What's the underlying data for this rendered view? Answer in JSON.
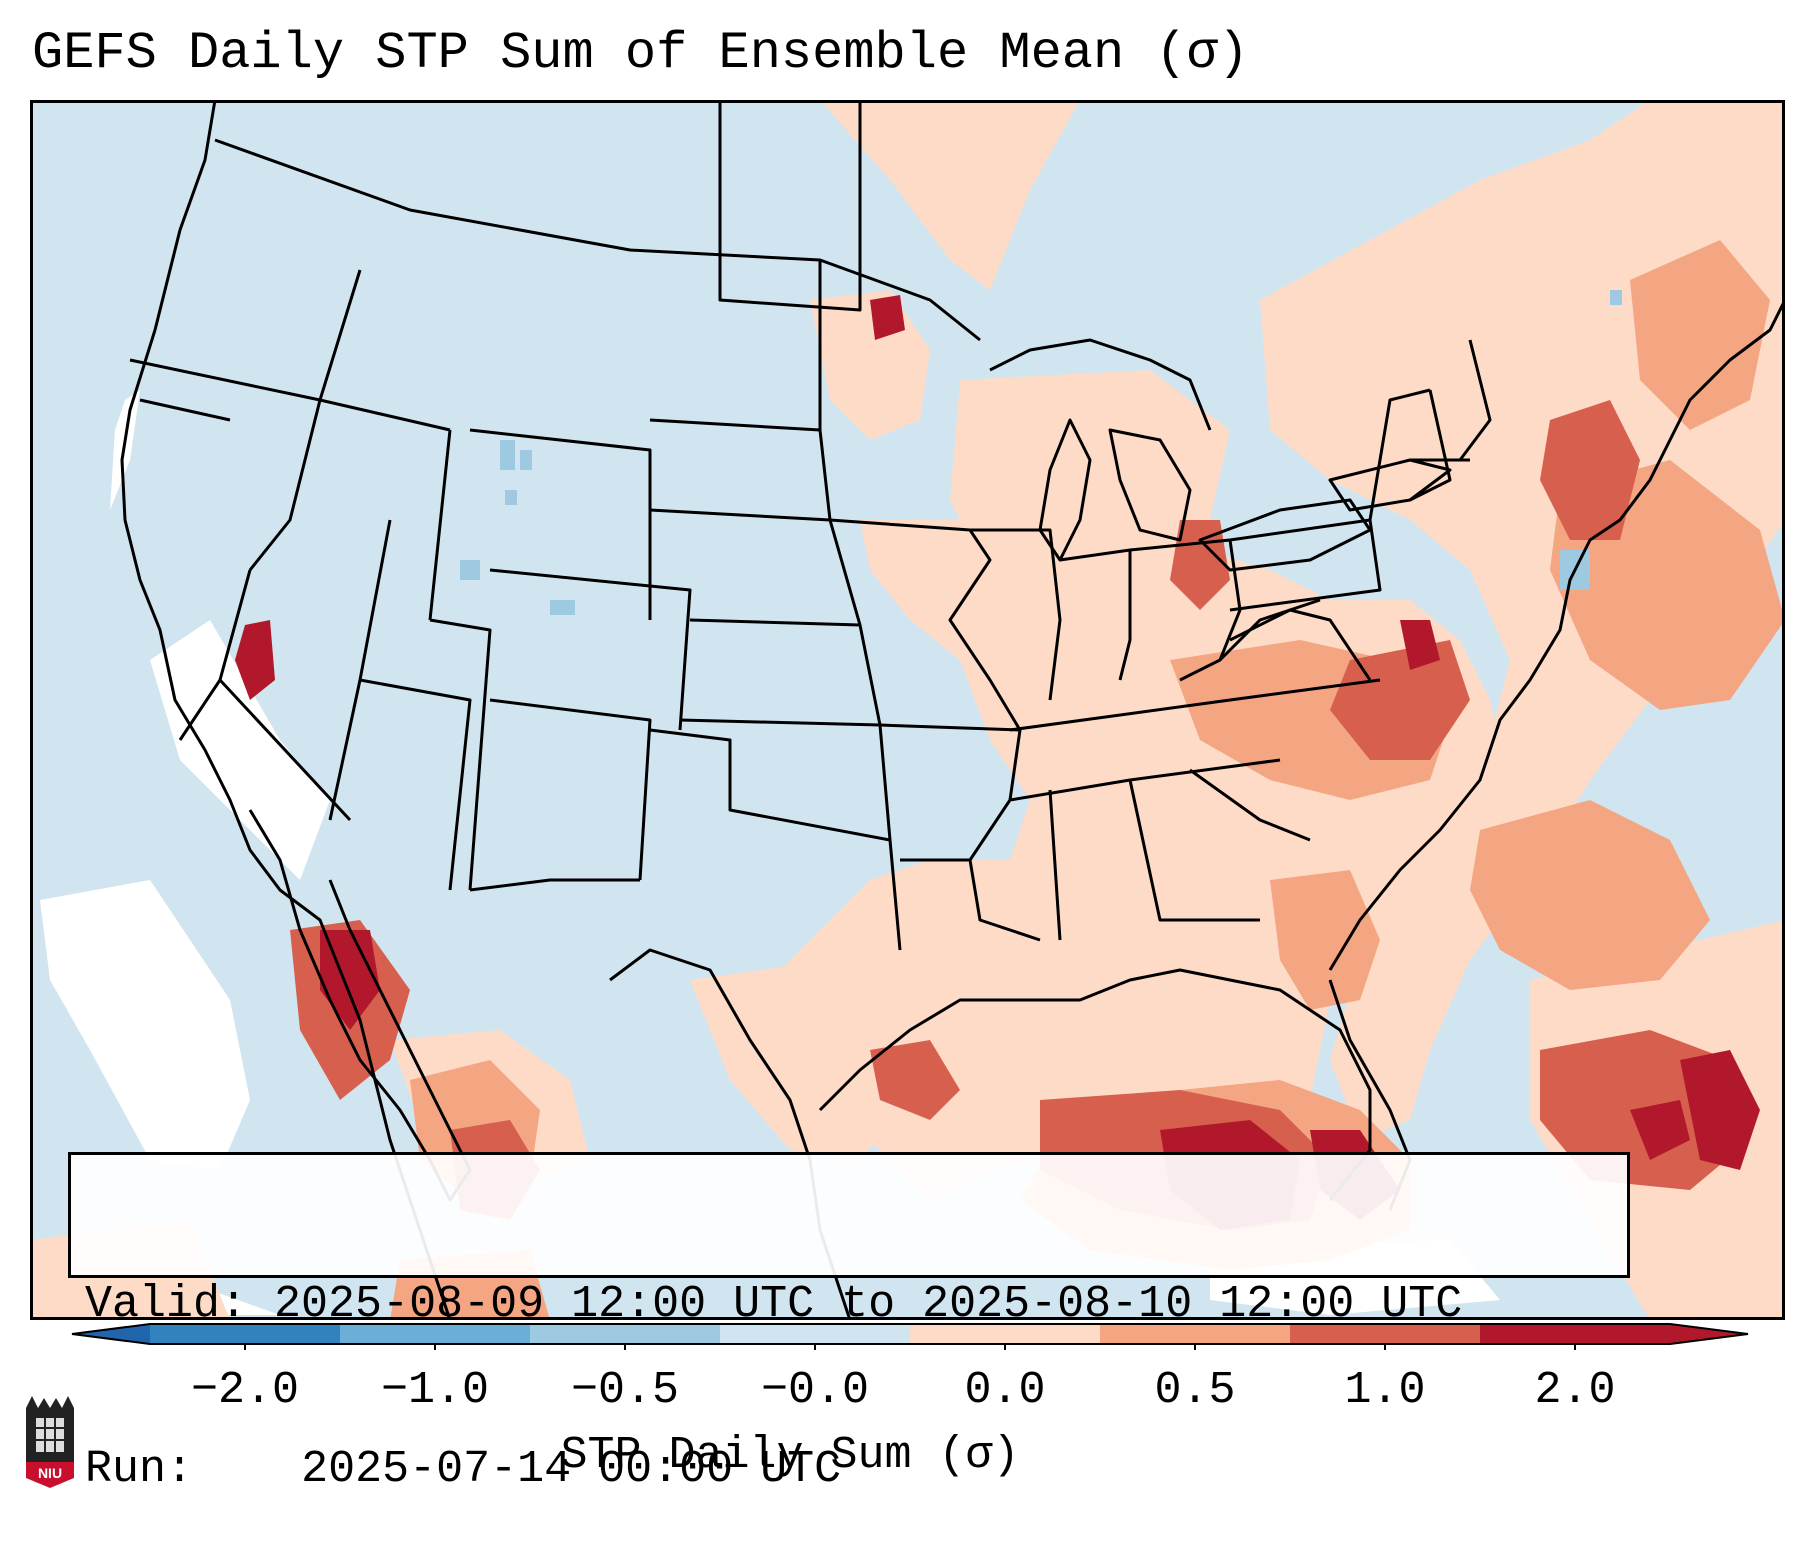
{
  "title": "GEFS Daily STP Sum of Ensemble Mean (σ)",
  "info": {
    "valid_label": "Valid:",
    "valid_value": "2025-08-09 12:00 UTC to 2025-08-10 12:00 UTC",
    "run_label": "Run:",
    "run_value": "2025-07-14 00:00 UTC"
  },
  "colorbar": {
    "label": "STP Daily Sum (σ)",
    "ticks": [
      "−2.0",
      "−1.0",
      "−0.5",
      "−0.0",
      "0.0",
      "0.5",
      "1.0",
      "2.0"
    ],
    "colors": [
      "#3182bd",
      "#6baed6",
      "#9ecae1",
      "#d1e5f0",
      "#fddbc7",
      "#f4a582",
      "#d6604d",
      "#b2182b"
    ],
    "extend_low_color": "#2166ac",
    "extend_high_color": "#b2182b"
  },
  "map": {
    "background_color": "#d1e5f0",
    "features": [
      "US state boundaries",
      "Canadian provinces",
      "Mexico coastline",
      "Great Lakes"
    ]
  },
  "logo": {
    "text": "NIU"
  }
}
